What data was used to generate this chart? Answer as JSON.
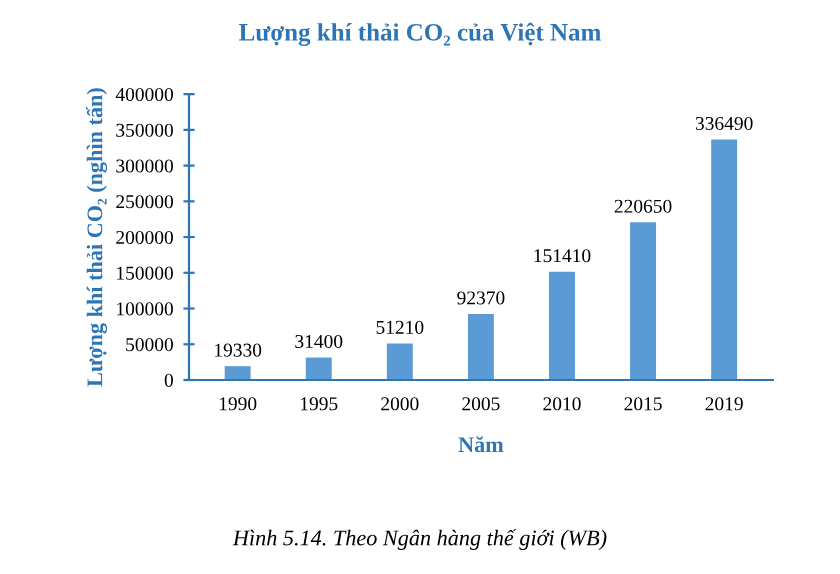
{
  "chart_data": {
    "type": "bar",
    "title": "Lượng khí thải CO₂ của Việt Nam",
    "xlabel": "Năm",
    "ylabel": "Lượng khí thải CO₂ (nghìn tấn)",
    "categories": [
      "1990",
      "1995",
      "2000",
      "2005",
      "2010",
      "2015",
      "2019"
    ],
    "values": [
      19330,
      31400,
      51210,
      92370,
      151410,
      220650,
      336490
    ],
    "color": "#5b9bd5",
    "ylim": [
      0,
      400000
    ],
    "yticks": [
      0,
      50000,
      100000,
      150000,
      200000,
      250000,
      300000,
      350000,
      400000
    ],
    "data_labels": true,
    "grid": false,
    "legend": false,
    "annotations": [
      "Hình 5.14. Theo Ngân hàng thế giới (WB)"
    ]
  }
}
